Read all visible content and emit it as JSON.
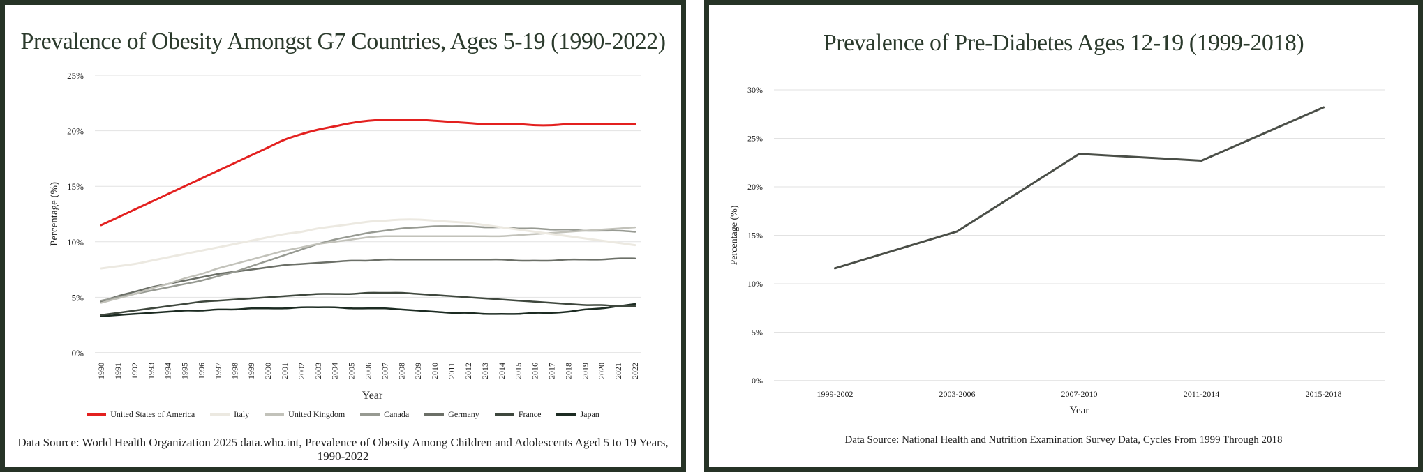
{
  "charts": [
    {
      "title": "Prevalence of Obesity Amongst G7 Countries, Ages 5-19 (1990-2022)",
      "source": "Data Source: World Health Organization 2025 data.who.int, Prevalence of Obesity Among Children and Adolescents Aged 5 to 19 Years, 1990-2022",
      "legend_items": [
        "United States of America",
        "Italy",
        "United Kingdom",
        "Canada",
        "Germany",
        "France",
        "Japan"
      ]
    },
    {
      "title": "Prevalence of Pre-Diabetes Ages 12-19 (1999-2018)",
      "source": "Data Source: National Health and Nutrition Examination Survey Data, Cycles From 1999 Through 2018"
    }
  ],
  "chart_data": [
    {
      "type": "line",
      "title": "Prevalence of Obesity Amongst G7 Countries, Ages 5-19 (1990-2022)",
      "xlabel": "Year",
      "ylabel": "Percentage (%)",
      "x": [
        1990,
        1991,
        1992,
        1993,
        1994,
        1995,
        1996,
        1997,
        1998,
        1999,
        2000,
        2001,
        2002,
        2003,
        2004,
        2005,
        2006,
        2007,
        2008,
        2009,
        2010,
        2011,
        2012,
        2013,
        2014,
        2015,
        2016,
        2017,
        2018,
        2019,
        2020,
        2021,
        2022
      ],
      "ylim": [
        0,
        25
      ],
      "yticks": [
        "0%",
        "5%",
        "10%",
        "15%",
        "20%",
        "25%"
      ],
      "legend_position": "bottom",
      "grid": true,
      "series": [
        {
          "name": "United States of America",
          "color": "#e3201f",
          "width": 3,
          "values": [
            11.5,
            12.2,
            12.9,
            13.6,
            14.3,
            15.0,
            15.7,
            16.4,
            17.1,
            17.8,
            18.5,
            19.2,
            19.7,
            20.1,
            20.4,
            20.7,
            20.9,
            21.0,
            21.0,
            21.0,
            20.9,
            20.8,
            20.7,
            20.6,
            20.6,
            20.6,
            20.5,
            20.5,
            20.6,
            20.6,
            20.6,
            20.6,
            20.6
          ]
        },
        {
          "name": "Italy",
          "color": "#ece9e1",
          "width": 3,
          "values": [
            7.6,
            7.8,
            8.0,
            8.3,
            8.6,
            8.9,
            9.2,
            9.5,
            9.8,
            10.1,
            10.4,
            10.7,
            10.9,
            11.2,
            11.4,
            11.6,
            11.8,
            11.9,
            12.0,
            12.0,
            11.9,
            11.8,
            11.7,
            11.5,
            11.3,
            11.1,
            10.9,
            10.7,
            10.5,
            10.3,
            10.1,
            9.9,
            9.7
          ]
        },
        {
          "name": "United Kingdom",
          "color": "#c2c2ba",
          "width": 2.5,
          "values": [
            4.5,
            4.9,
            5.3,
            5.8,
            6.2,
            6.7,
            7.1,
            7.6,
            8.0,
            8.4,
            8.8,
            9.2,
            9.5,
            9.8,
            10.0,
            10.2,
            10.4,
            10.5,
            10.5,
            10.5,
            10.5,
            10.5,
            10.5,
            10.5,
            10.5,
            10.6,
            10.7,
            10.8,
            10.9,
            11.0,
            11.1,
            11.2,
            11.3
          ]
        },
        {
          "name": "Canada",
          "color": "#979a92",
          "width": 2.5,
          "values": [
            4.7,
            5.0,
            5.3,
            5.6,
            5.9,
            6.2,
            6.5,
            6.9,
            7.3,
            7.8,
            8.3,
            8.8,
            9.3,
            9.8,
            10.2,
            10.5,
            10.8,
            11.0,
            11.2,
            11.3,
            11.4,
            11.4,
            11.4,
            11.3,
            11.3,
            11.2,
            11.2,
            11.1,
            11.1,
            11.0,
            11.0,
            11.0,
            10.9
          ]
        },
        {
          "name": "Germany",
          "color": "#6b6f67",
          "width": 2.5,
          "values": [
            4.6,
            5.1,
            5.5,
            5.9,
            6.2,
            6.5,
            6.8,
            7.1,
            7.3,
            7.5,
            7.7,
            7.9,
            8.0,
            8.1,
            8.2,
            8.3,
            8.3,
            8.4,
            8.4,
            8.4,
            8.4,
            8.4,
            8.4,
            8.4,
            8.4,
            8.3,
            8.3,
            8.3,
            8.4,
            8.4,
            8.4,
            8.5,
            8.5
          ]
        },
        {
          "name": "France",
          "color": "#3e473d",
          "width": 2.5,
          "values": [
            3.4,
            3.6,
            3.8,
            4.0,
            4.2,
            4.4,
            4.6,
            4.7,
            4.8,
            4.9,
            5.0,
            5.1,
            5.2,
            5.3,
            5.3,
            5.3,
            5.4,
            5.4,
            5.4,
            5.3,
            5.2,
            5.1,
            5.0,
            4.9,
            4.8,
            4.7,
            4.6,
            4.5,
            4.4,
            4.3,
            4.3,
            4.2,
            4.2
          ]
        },
        {
          "name": "Japan",
          "color": "#1c2b22",
          "width": 2.5,
          "values": [
            3.3,
            3.4,
            3.5,
            3.6,
            3.7,
            3.8,
            3.8,
            3.9,
            3.9,
            4.0,
            4.0,
            4.0,
            4.1,
            4.1,
            4.1,
            4.0,
            4.0,
            4.0,
            3.9,
            3.8,
            3.7,
            3.6,
            3.6,
            3.5,
            3.5,
            3.5,
            3.6,
            3.6,
            3.7,
            3.9,
            4.0,
            4.2,
            4.4
          ]
        }
      ]
    },
    {
      "type": "line",
      "title": "Prevalence of Pre-Diabetes Ages 12-19 (1999-2018)",
      "xlabel": "Year",
      "ylabel": "Percentage (%)",
      "categories": [
        "1999-2002",
        "2003-2006",
        "2007-2010",
        "2011-2014",
        "2015-2018"
      ],
      "ylim": [
        0,
        30
      ],
      "yticks": [
        "0%",
        "5%",
        "10%",
        "15%",
        "20%",
        "25%",
        "30%"
      ],
      "grid": true,
      "series": [
        {
          "color": "#4a4e47",
          "width": 3,
          "values": [
            11.6,
            15.4,
            23.4,
            22.7,
            28.2
          ]
        }
      ]
    }
  ]
}
